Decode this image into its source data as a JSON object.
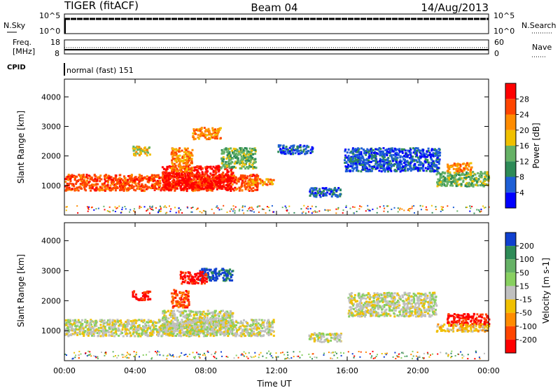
{
  "header": {
    "title": "TIGER (fitACF)",
    "beam": "Beam 04",
    "date": "14/Aug/2013"
  },
  "mini_panels": {
    "nsky_label": "N.Sky",
    "nsearch_label": "N.Search",
    "nsky_ticks": [
      "10^5",
      "10^0"
    ],
    "nsearch_ticks": [
      "10^5",
      "10^0"
    ],
    "freq_label": "Freq.",
    "freq_unit": "[MHz]",
    "freq_ticks": [
      "18",
      "8"
    ],
    "nave_label": "Nave",
    "nave_ticks": [
      "60",
      "0"
    ],
    "cpid_label": "CPID",
    "cpid_text": "normal (fast) 151"
  },
  "chart_data": [
    {
      "type": "heatmap",
      "name": "power",
      "xlabel": "",
      "ylabel": "Slant Range [km]",
      "x_ticks": [
        "00:00",
        "04:00",
        "08:00",
        "12:00",
        "16:00",
        "20:00",
        "00:00"
      ],
      "y_ticks": [
        "1000",
        "2000",
        "3000",
        "4000"
      ],
      "xlim": [
        0,
        24
      ],
      "ylim": [
        0,
        4600
      ],
      "colorbar": {
        "label": "Power [dB]",
        "ticks": [
          "4",
          "8",
          "12",
          "16",
          "20",
          "24",
          "28"
        ],
        "colors": [
          "#0000ff",
          "#1e5fd6",
          "#2e8b57",
          "#66b266",
          "#f0c000",
          "#ff8c00",
          "#ff4500",
          "#ff0000"
        ]
      },
      "regions": [
        {
          "t0": 0.0,
          "t1": 10.9,
          "r0": 850,
          "r1": 1400,
          "level": 6
        },
        {
          "t0": 5.5,
          "t1": 9.5,
          "r0": 900,
          "r1": 1700,
          "level": 7
        },
        {
          "t0": 10.3,
          "t1": 11.8,
          "r0": 1050,
          "r1": 1250,
          "level": 5
        },
        {
          "t0": 6.0,
          "t1": 7.2,
          "r0": 1500,
          "r1": 2300,
          "level": 5
        },
        {
          "t0": 7.2,
          "t1": 8.8,
          "r0": 2600,
          "r1": 3000,
          "level": 5
        },
        {
          "t0": 8.8,
          "t1": 10.8,
          "r0": 1600,
          "r1": 2300,
          "level": 3
        },
        {
          "t0": 3.8,
          "t1": 4.8,
          "r0": 2050,
          "r1": 2350,
          "level": 4
        },
        {
          "t0": 13.8,
          "t1": 15.6,
          "r0": 650,
          "r1": 950,
          "level": 1
        },
        {
          "t0": 12.0,
          "t1": 14.0,
          "r0": 2100,
          "r1": 2400,
          "level": 1
        },
        {
          "t0": 15.8,
          "t1": 21.2,
          "r0": 1500,
          "r1": 2300,
          "level": 1
        },
        {
          "t0": 21.0,
          "t1": 24.0,
          "r0": 1000,
          "r1": 1500,
          "level": 3
        },
        {
          "t0": 21.6,
          "t1": 23.0,
          "r0": 1500,
          "r1": 1800,
          "level": 5
        }
      ]
    },
    {
      "type": "heatmap",
      "name": "velocity",
      "xlabel": "Time UT",
      "ylabel": "Slant Range [km]",
      "x_ticks": [
        "00:00",
        "04:00",
        "08:00",
        "12:00",
        "16:00",
        "20:00",
        "00:00"
      ],
      "y_ticks": [
        "1000",
        "2000",
        "3000",
        "4000"
      ],
      "xlim": [
        0,
        24
      ],
      "ylim": [
        0,
        4600
      ],
      "colorbar": {
        "label": "Velocity [m s-1]",
        "ticks": [
          "200",
          "100",
          "50",
          "15",
          "-15",
          "-50",
          "-100",
          "-200"
        ],
        "colors": [
          "#1040d0",
          "#2e8b57",
          "#66b266",
          "#88d060",
          "#c0c0c0",
          "#f0c000",
          "#ff8c00",
          "#ff4500",
          "#ff0000"
        ]
      },
      "regions": [
        {
          "t0": 0.0,
          "t1": 11.8,
          "r0": 850,
          "r1": 1400,
          "level": 4
        },
        {
          "t0": 5.5,
          "t1": 9.5,
          "r0": 900,
          "r1": 1700,
          "level": 4
        },
        {
          "t0": 7.6,
          "t1": 9.5,
          "r0": 2700,
          "r1": 3100,
          "level": 0
        },
        {
          "t0": 6.5,
          "t1": 8.0,
          "r0": 2600,
          "r1": 3000,
          "level": 8
        },
        {
          "t0": 6.0,
          "t1": 7.0,
          "r0": 1800,
          "r1": 2400,
          "level": 7
        },
        {
          "t0": 3.8,
          "t1": 4.8,
          "r0": 2050,
          "r1": 2350,
          "level": 8
        },
        {
          "t0": 13.8,
          "t1": 15.6,
          "r0": 650,
          "r1": 950,
          "level": 4
        },
        {
          "t0": 16.0,
          "t1": 21.0,
          "r0": 1500,
          "r1": 2300,
          "level": 4
        },
        {
          "t0": 21.6,
          "t1": 24.0,
          "r0": 1200,
          "r1": 1600,
          "level": 8
        },
        {
          "t0": 21.0,
          "t1": 24.0,
          "r0": 1000,
          "r1": 1250,
          "level": 5
        }
      ]
    }
  ]
}
